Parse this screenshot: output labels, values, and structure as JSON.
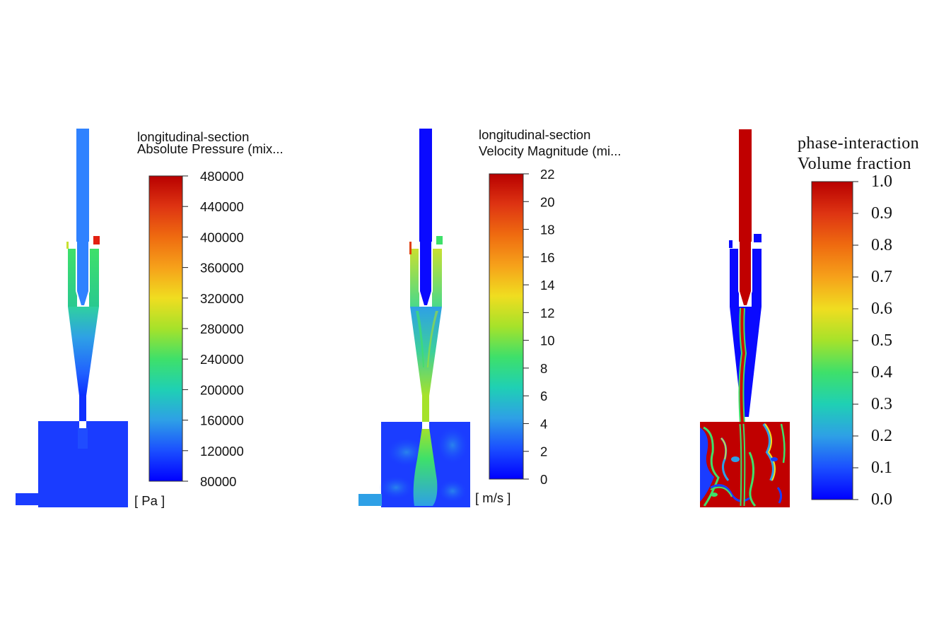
{
  "colormap": [
    "#0000ff",
    "#1b4fff",
    "#2ea0e6",
    "#1fd0b4",
    "#3ee06a",
    "#a6e22a",
    "#f0dd20",
    "#f6a11a",
    "#ef6b10",
    "#de3412",
    "#b80000"
  ],
  "panels": [
    {
      "id": "pressure",
      "title_line1": "longitudinal-section",
      "title_line2": "Absolute Pressure (mix...",
      "unit": "[ Pa ]",
      "ticks": [
        "480000",
        "440000",
        "400000",
        "360000",
        "320000",
        "280000",
        "240000",
        "200000",
        "160000",
        "120000",
        "80000"
      ]
    },
    {
      "id": "velocity",
      "title_line1": "longitudinal-section",
      "title_line2": "Velocity Magnitude (mi...",
      "unit": "[ m/s ]",
      "ticks": [
        "22",
        "20",
        "18",
        "16",
        "14",
        "12",
        "10",
        "8",
        "6",
        "4",
        "2",
        "0"
      ]
    },
    {
      "id": "volume-fraction",
      "title_line1": "phase-interaction",
      "title_line2": "Volume fraction",
      "unit": "",
      "ticks": [
        "1.0",
        "0.9",
        "0.8",
        "0.7",
        "0.6",
        "0.5",
        "0.4",
        "0.3",
        "0.2",
        "0.1",
        "0.0"
      ]
    }
  ]
}
